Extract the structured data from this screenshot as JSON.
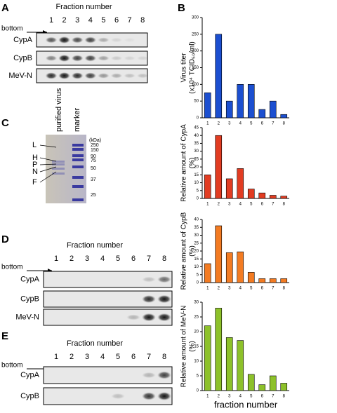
{
  "panels": {
    "A": {
      "label": "A",
      "title": "Fraction number",
      "lanes": [
        "1",
        "2",
        "3",
        "4",
        "5",
        "6",
        "7",
        "8"
      ],
      "bottom": "bottom",
      "rows": [
        "CypA",
        "CypB",
        "MeV-N"
      ]
    },
    "B": {
      "label": "B"
    },
    "C": {
      "label": "C",
      "lanes": [
        "purified virus",
        "marker"
      ],
      "unit": "(kDa)",
      "markers": [
        "250",
        "150",
        "90",
        "75",
        "50",
        "37",
        "25"
      ],
      "bands": [
        "L",
        "H",
        "P",
        "N",
        "F"
      ]
    },
    "D": {
      "label": "D",
      "title": "Fraction number",
      "lanes": [
        "1",
        "2",
        "3",
        "4",
        "5",
        "6",
        "7",
        "8"
      ],
      "bottom": "bottom",
      "rows": [
        "CypA",
        "CypB",
        "MeV-N"
      ]
    },
    "E": {
      "label": "E",
      "title": "Fraction number",
      "lanes": [
        "1",
        "2",
        "3",
        "4",
        "5",
        "6",
        "7",
        "8"
      ],
      "bottom": "bottom",
      "rows": [
        "CypA",
        "CypB"
      ]
    }
  },
  "chart_data": [
    {
      "type": "bar",
      "ylabel": [
        "Virus titer",
        "(x10⁴ TCID₅₀/ml)"
      ],
      "categories": [
        "1",
        "2",
        "3",
        "4",
        "5",
        "6",
        "7",
        "8"
      ],
      "values": [
        75,
        250,
        50,
        100,
        100,
        25,
        50,
        10
      ],
      "color": "#1c4fd0",
      "ylim": [
        0,
        300
      ],
      "yticks": [
        0,
        50,
        100,
        150,
        200,
        250,
        300
      ]
    },
    {
      "type": "bar",
      "ylabel": [
        "Relative amount of CypA",
        "(%)"
      ],
      "categories": [
        "1",
        "2",
        "3",
        "4",
        "5",
        "6",
        "7",
        "8"
      ],
      "values": [
        15,
        40,
        12.5,
        19,
        6,
        3.5,
        2,
        1.5
      ],
      "color": "#e23c22",
      "ylim": [
        0,
        45
      ],
      "yticks": [
        0,
        5,
        10,
        15,
        20,
        25,
        30,
        35,
        40,
        45
      ]
    },
    {
      "type": "bar",
      "ylabel": [
        "Relative amount of CypB",
        "(%)"
      ],
      "categories": [
        "1",
        "2",
        "3",
        "4",
        "5",
        "6",
        "7",
        "8"
      ],
      "values": [
        12,
        36,
        19,
        19.5,
        6.5,
        2.5,
        2.5,
        2.5
      ],
      "color": "#f37b22",
      "ylim": [
        0,
        40
      ],
      "yticks": [
        0,
        5,
        10,
        15,
        20,
        25,
        30,
        35,
        40
      ]
    },
    {
      "type": "bar",
      "ylabel": [
        "Relative amount of MeV-N",
        "(%)"
      ],
      "xlabel": "fraction number",
      "categories": [
        "1",
        "2",
        "3",
        "4",
        "5",
        "6",
        "7",
        "8"
      ],
      "values": [
        22,
        28,
        18,
        17,
        5.5,
        2,
        5,
        2.5
      ],
      "color": "#8dc12a",
      "ylim": [
        0,
        30
      ],
      "yticks": [
        0,
        5,
        10,
        15,
        20,
        25,
        30
      ]
    }
  ]
}
